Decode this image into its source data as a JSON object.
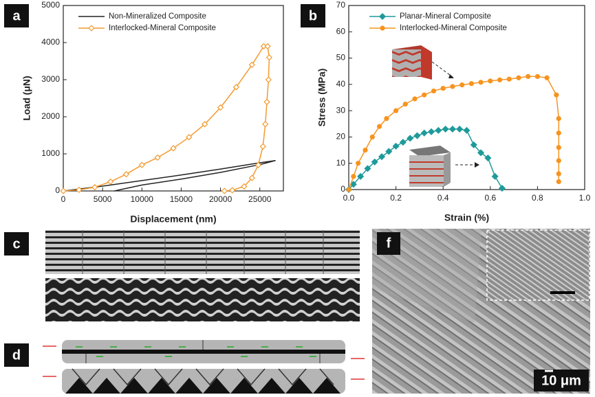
{
  "chart_data": [
    {
      "type": "line",
      "panel": "a",
      "x_label": "Displacement (nm)",
      "y_label": "Load (μN)",
      "xlim": [
        0,
        28000
      ],
      "xticks": [
        0,
        5000,
        10000,
        15000,
        20000,
        25000
      ],
      "ylim": [
        0,
        5000
      ],
      "yticks": [
        0,
        1000,
        2000,
        3000,
        4000,
        5000
      ],
      "series": [
        {
          "name": "Non-Mineralized Composite",
          "color": "#222222",
          "marker": "none",
          "x": [
            0,
            5000,
            10000,
            15000,
            20000,
            25000,
            27000,
            25000,
            20000,
            15000,
            10000,
            6500
          ],
          "values": [
            0,
            130,
            280,
            430,
            590,
            760,
            820,
            710,
            500,
            320,
            160,
            0
          ]
        },
        {
          "name": "Interlocked-Mineral Composite",
          "color": "#f39a2e",
          "marker": "diamond-open",
          "x": [
            0,
            2000,
            4000,
            6000,
            8000,
            10000,
            12000,
            14000,
            16000,
            18000,
            20000,
            22000,
            24000,
            25500,
            26000,
            26200,
            26100,
            25900,
            25700,
            25400,
            24800,
            24000,
            23000,
            21500,
            20500
          ],
          "values": [
            0,
            30,
            100,
            250,
            450,
            700,
            900,
            1150,
            1450,
            1800,
            2250,
            2800,
            3400,
            3900,
            3900,
            3600,
            3000,
            2400,
            1800,
            1200,
            700,
            350,
            120,
            20,
            0
          ]
        }
      ]
    },
    {
      "type": "line",
      "panel": "b",
      "x_label": "Strain (%)",
      "y_label": "Stress (MPa)",
      "xlim": [
        0,
        1
      ],
      "xticks": [
        {
          "value": 0,
          "label": "0.0"
        },
        0.2,
        0.4,
        0.6,
        0.8,
        {
          "value": 1,
          "label": "1.0"
        }
      ],
      "ylim": [
        0,
        70
      ],
      "yticks": [
        0,
        10,
        20,
        30,
        40,
        50,
        60,
        70
      ],
      "series": [
        {
          "name": "Planar-Mineral Composite",
          "color": "#1f9a9a",
          "marker": "diamond",
          "x": [
            0,
            0.02,
            0.05,
            0.08,
            0.11,
            0.14,
            0.17,
            0.2,
            0.23,
            0.26,
            0.29,
            0.32,
            0.35,
            0.38,
            0.41,
            0.44,
            0.47,
            0.5,
            0.53,
            0.56,
            0.59,
            0.62,
            0.65
          ],
          "values": [
            0,
            2,
            5,
            8,
            10.5,
            12.5,
            14.5,
            16.5,
            18,
            19.5,
            20.5,
            21.5,
            22,
            22.5,
            23,
            23,
            23,
            22.5,
            17,
            14,
            12,
            5,
            0.5
          ]
        },
        {
          "name": "Interlocked-Mineral Composite",
          "color": "#f7931e",
          "marker": "circle",
          "x": [
            0,
            0.02,
            0.04,
            0.07,
            0.1,
            0.13,
            0.16,
            0.2,
            0.24,
            0.28,
            0.32,
            0.36,
            0.4,
            0.44,
            0.48,
            0.52,
            0.56,
            0.6,
            0.64,
            0.68,
            0.72,
            0.76,
            0.8,
            0.84,
            0.88,
            0.89,
            0.89,
            0.89,
            0.89,
            0.89,
            0.89
          ],
          "values": [
            0,
            5,
            10,
            15,
            20,
            24,
            27,
            30,
            32.5,
            34.5,
            36,
            37.5,
            38.5,
            39.2,
            39.8,
            40.3,
            40.8,
            41.3,
            41.7,
            42,
            42.5,
            43,
            43,
            42.5,
            36,
            27,
            21.5,
            16,
            11,
            6,
            3
          ]
        }
      ]
    }
  ],
  "panels": {
    "c": "c",
    "d": "d",
    "f": "f"
  },
  "scale_bar": "10 μm"
}
